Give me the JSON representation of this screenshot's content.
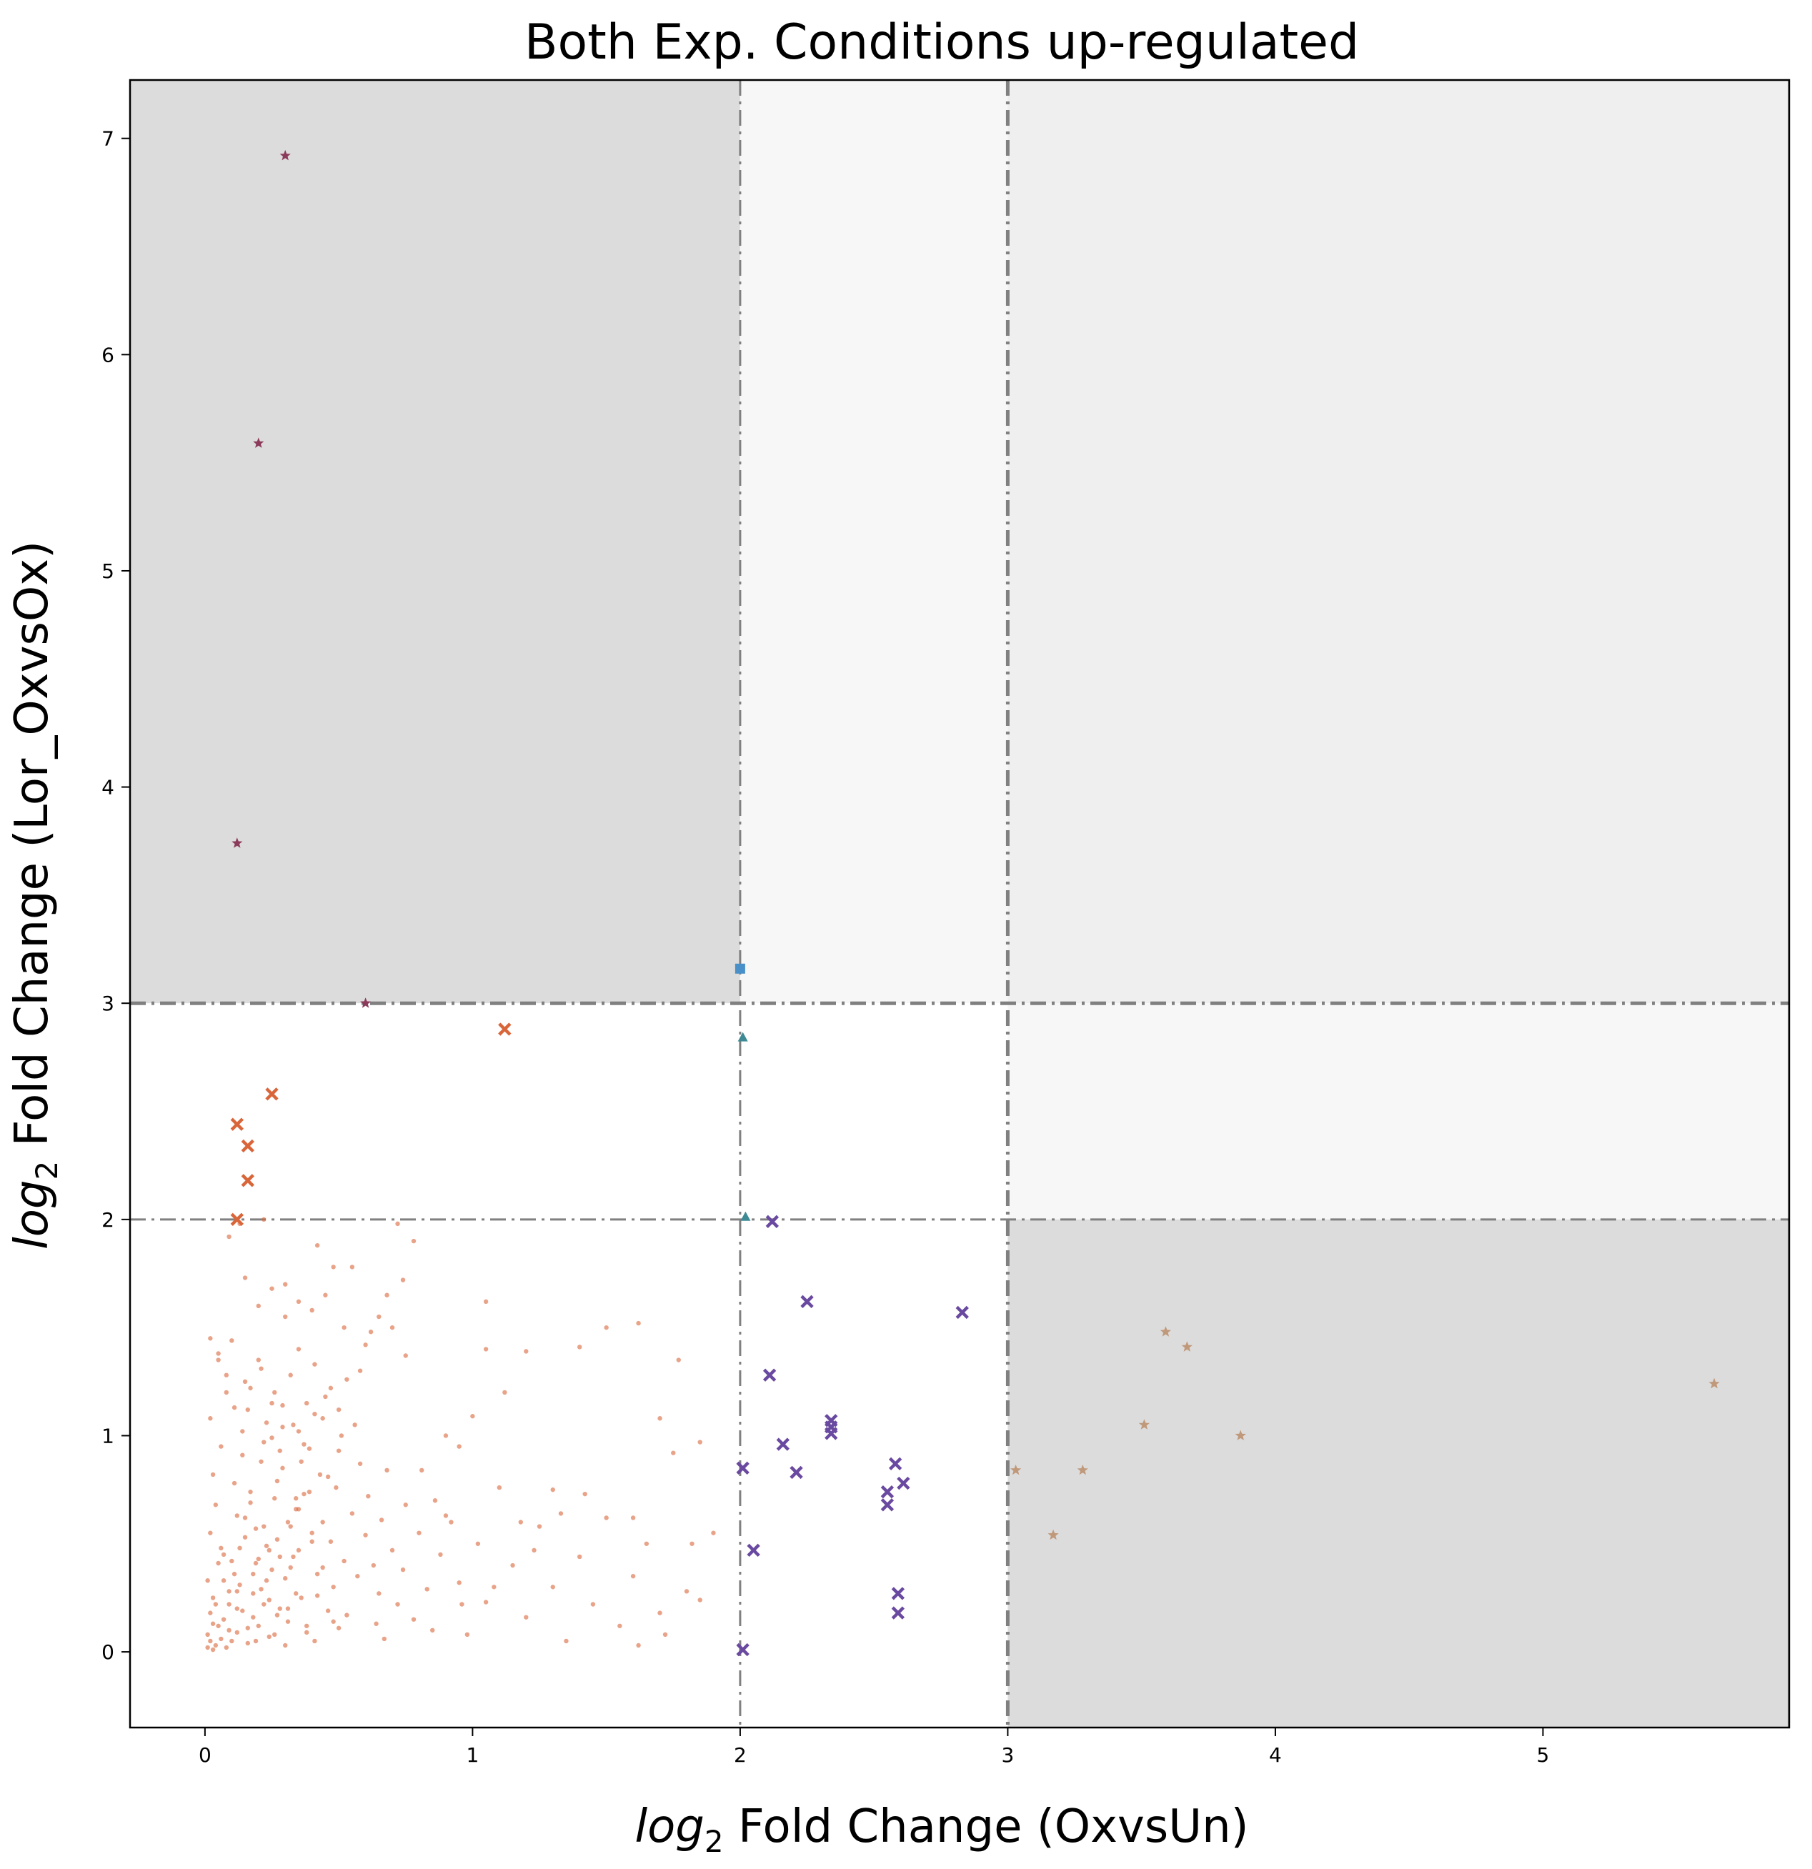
{
  "chart_data": {
    "type": "scatter",
    "title": "Both Exp. Conditions up-regulated",
    "xlabel": {
      "log": "log",
      "sub": "2",
      "text": " Fold Change (OxvsUn)"
    },
    "ylabel": {
      "log": "log",
      "sub": "2",
      "text": " Fold Change (Lor_OxvsOx)"
    },
    "xlim": [
      -0.28,
      5.92
    ],
    "ylim": [
      -0.35,
      7.27
    ],
    "xticks": [
      0,
      1,
      2,
      3,
      4,
      5
    ],
    "yticks": [
      0,
      1,
      2,
      3,
      4,
      5,
      6,
      7
    ],
    "grid": false,
    "thresholds": {
      "x": [
        2,
        3
      ],
      "y": [
        2,
        3
      ]
    },
    "regions": [
      {
        "x": [
          -0.28,
          2
        ],
        "y": [
          3,
          7.27
        ],
        "color": "#dcdcdc"
      },
      {
        "x": [
          2,
          3
        ],
        "y": [
          3,
          7.27
        ],
        "color": "#f7f7f7"
      },
      {
        "x": [
          3,
          5.92
        ],
        "y": [
          3,
          7.27
        ],
        "color": "#efefef"
      },
      {
        "x": [
          3,
          5.92
        ],
        "y": [
          2,
          3
        ],
        "color": "#f7f7f7"
      },
      {
        "x": [
          3,
          5.92
        ],
        "y": [
          -0.35,
          2
        ],
        "color": "#dcdcdc"
      }
    ],
    "series": [
      {
        "marker": "dot",
        "color": "#d9663a",
        "points": [
          [
            0.01,
            0.02
          ],
          [
            0.02,
            0.05
          ],
          [
            0.03,
            0.01
          ],
          [
            0.01,
            0.08
          ],
          [
            0.04,
            0.03
          ],
          [
            0.05,
            0.12
          ],
          [
            0.02,
            0.18
          ],
          [
            0.06,
            0.06
          ],
          [
            0.03,
            0.25
          ],
          [
            0.08,
            0.02
          ],
          [
            0.01,
            0.33
          ],
          [
            0.05,
            0.41
          ],
          [
            0.07,
            0.15
          ],
          [
            0.1,
            0.05
          ],
          [
            0.02,
            0.55
          ],
          [
            0.09,
            0.28
          ],
          [
            0.12,
            0.09
          ],
          [
            0.04,
            0.68
          ],
          [
            0.11,
            0.36
          ],
          [
            0.14,
            0.19
          ],
          [
            0.03,
            0.82
          ],
          [
            0.13,
            0.48
          ],
          [
            0.16,
            0.04
          ],
          [
            0.06,
            0.95
          ],
          [
            0.15,
            0.62
          ],
          [
            0.18,
            0.27
          ],
          [
            0.02,
            1.08
          ],
          [
            0.17,
            0.74
          ],
          [
            0.2,
            0.12
          ],
          [
            0.08,
            1.2
          ],
          [
            0.19,
            0.41
          ],
          [
            0.22,
            0.58
          ],
          [
            0.05,
            1.35
          ],
          [
            0.21,
            0.88
          ],
          [
            0.24,
            0.07
          ],
          [
            0.1,
            1.44
          ],
          [
            0.23,
            0.33
          ],
          [
            0.26,
            0.71
          ],
          [
            0.07,
            0.45
          ],
          [
            0.25,
            0.99
          ],
          [
            0.28,
            0.2
          ],
          [
            0.12,
            0.63
          ],
          [
            0.27,
            0.52
          ],
          [
            0.3,
            0.03
          ],
          [
            0.09,
            0.22
          ],
          [
            0.29,
            0.85
          ],
          [
            0.32,
            0.39
          ],
          [
            0.14,
            0.91
          ],
          [
            0.31,
            0.14
          ],
          [
            0.34,
            0.66
          ],
          [
            0.11,
            0.78
          ],
          [
            0.33,
            1.05
          ],
          [
            0.36,
            0.25
          ],
          [
            0.16,
            1.12
          ],
          [
            0.35,
            0.47
          ],
          [
            0.38,
            0.09
          ],
          [
            0.13,
            0.31
          ],
          [
            0.37,
            0.73
          ],
          [
            0.4,
            0.55
          ],
          [
            0.18,
            0.16
          ],
          [
            0.39,
            0.94
          ],
          [
            0.42,
            0.36
          ],
          [
            0.15,
            1.25
          ],
          [
            0.41,
            0.05
          ],
          [
            0.44,
            0.6
          ],
          [
            0.2,
            0.43
          ],
          [
            0.43,
            0.82
          ],
          [
            0.46,
            0.19
          ],
          [
            0.17,
            0.69
          ],
          [
            0.45,
            1.18
          ],
          [
            0.48,
            0.3
          ],
          [
            0.22,
            0.97
          ],
          [
            0.47,
            0.51
          ],
          [
            0.5,
            0.11
          ],
          [
            0.19,
            0.57
          ],
          [
            0.49,
            0.76
          ],
          [
            0.52,
            0.42
          ],
          [
            0.24,
            0.24
          ],
          [
            0.51,
            1.0
          ],
          [
            0.55,
            0.64
          ],
          [
            0.21,
            1.31
          ],
          [
            0.53,
            0.17
          ],
          [
            0.58,
            0.87
          ],
          [
            0.26,
            0.08
          ],
          [
            0.57,
            0.35
          ],
          [
            0.6,
            0.54
          ],
          [
            0.23,
            0.49
          ],
          [
            0.61,
            0.72
          ],
          [
            0.64,
            0.13
          ],
          [
            0.28,
            0.93
          ],
          [
            0.63,
            0.4
          ],
          [
            0.66,
            0.61
          ],
          [
            0.25,
            1.15
          ],
          [
            0.65,
            0.27
          ],
          [
            0.68,
            0.84
          ],
          [
            0.3,
            0.34
          ],
          [
            0.67,
            0.06
          ],
          [
            0.7,
            0.47
          ],
          [
            0.27,
            0.79
          ],
          [
            0.72,
            0.22
          ],
          [
            0.75,
            0.68
          ],
          [
            0.32,
            0.58
          ],
          [
            0.74,
            0.38
          ],
          [
            0.78,
            0.15
          ],
          [
            0.29,
            1.04
          ],
          [
            0.8,
            0.55
          ],
          [
            0.83,
            0.29
          ],
          [
            0.34,
            0.71
          ],
          [
            0.85,
            0.1
          ],
          [
            0.88,
            0.45
          ],
          [
            0.31,
            0.2
          ],
          [
            0.9,
            0.63
          ],
          [
            0.95,
            0.32
          ],
          [
            0.36,
            0.88
          ],
          [
            0.98,
            0.08
          ],
          [
            1.02,
            0.5
          ],
          [
            0.33,
            0.44
          ],
          [
            1.05,
            0.23
          ],
          [
            1.1,
            0.76
          ],
          [
            0.38,
            0.12
          ],
          [
            1.15,
            0.4
          ],
          [
            1.2,
            0.16
          ],
          [
            0.35,
            0.66
          ],
          [
            1.25,
            0.58
          ],
          [
            1.3,
            0.3
          ],
          [
            0.4,
            0.51
          ],
          [
            1.35,
            0.05
          ],
          [
            1.4,
            0.44
          ],
          [
            0.37,
            0.96
          ],
          [
            1.45,
            0.22
          ],
          [
            1.5,
            0.62
          ],
          [
            0.42,
            0.26
          ],
          [
            1.55,
            0.12
          ],
          [
            1.6,
            0.35
          ],
          [
            0.39,
            0.74
          ],
          [
            1.65,
            0.5
          ],
          [
            1.7,
            0.18
          ],
          [
            0.44,
            0.39
          ],
          [
            1.75,
            0.92
          ],
          [
            1.8,
            0.28
          ],
          [
            0.41,
            1.1
          ],
          [
            1.85,
            0.24
          ],
          [
            1.9,
            0.55
          ],
          [
            0.46,
            0.81
          ],
          [
            0.48,
            0.14
          ],
          [
            0.5,
            0.93
          ],
          [
            0.02,
            1.45
          ],
          [
            0.05,
            1.38
          ],
          [
            0.08,
            1.28
          ],
          [
            0.11,
            1.13
          ],
          [
            0.14,
            1.02
          ],
          [
            0.17,
            1.22
          ],
          [
            0.2,
            1.35
          ],
          [
            0.23,
            1.06
          ],
          [
            0.26,
            1.2
          ],
          [
            0.29,
            1.14
          ],
          [
            0.32,
            1.28
          ],
          [
            0.35,
            1.02
          ],
          [
            0.38,
            1.15
          ],
          [
            0.41,
            1.33
          ],
          [
            0.44,
            1.08
          ],
          [
            0.47,
            1.22
          ],
          [
            0.5,
            1.12
          ],
          [
            0.53,
            1.26
          ],
          [
            0.56,
            1.05
          ],
          [
            0.09,
            1.92
          ],
          [
            0.15,
            1.73
          ],
          [
            0.2,
            1.6
          ],
          [
            0.25,
            1.68
          ],
          [
            0.3,
            1.55
          ],
          [
            0.35,
            1.62
          ],
          [
            0.4,
            1.58
          ],
          [
            0.45,
            1.65
          ],
          [
            0.55,
            1.78
          ],
          [
            0.6,
            1.42
          ],
          [
            0.65,
            1.55
          ],
          [
            0.7,
            1.5
          ],
          [
            0.75,
            1.37
          ],
          [
            0.13,
            1.98
          ],
          [
            0.72,
            1.98
          ],
          [
            0.78,
            1.9
          ],
          [
            0.48,
            1.78
          ],
          [
            0.22,
            2.0
          ],
          [
            0.3,
            1.7
          ],
          [
            1.05,
            1.62
          ],
          [
            1.2,
            1.39
          ],
          [
            1.5,
            1.5
          ],
          [
            1.62,
            1.52
          ],
          [
            1.77,
            1.35
          ],
          [
            1.85,
            0.97
          ],
          [
            1.05,
            1.4
          ],
          [
            1.12,
            1.2
          ],
          [
            1.0,
            1.09
          ],
          [
            0.9,
            1.0
          ],
          [
            0.92,
            0.6
          ],
          [
            0.95,
            0.95
          ],
          [
            0.62,
            1.48
          ],
          [
            0.68,
            1.65
          ],
          [
            0.74,
            1.72
          ],
          [
            0.58,
            1.3
          ],
          [
            0.52,
            1.5
          ],
          [
            0.42,
            1.88
          ],
          [
            0.35,
            1.4
          ],
          [
            1.3,
            0.75
          ],
          [
            1.42,
            0.73
          ],
          [
            1.6,
            0.62
          ],
          [
            1.7,
            1.08
          ],
          [
            1.4,
            1.41
          ],
          [
            1.18,
            0.6
          ],
          [
            1.08,
            0.3
          ],
          [
            0.96,
            0.22
          ],
          [
            0.86,
            0.7
          ],
          [
            0.81,
            0.84
          ],
          [
            1.23,
            0.47
          ],
          [
            1.33,
            0.64
          ],
          [
            1.62,
            0.03
          ],
          [
            1.72,
            0.08
          ],
          [
            1.82,
            0.5
          ],
          [
            0.12,
            0.2
          ],
          [
            0.1,
            0.42
          ],
          [
            0.07,
            0.33
          ],
          [
            0.04,
            0.22
          ],
          [
            0.06,
            0.48
          ],
          [
            0.15,
            0.53
          ],
          [
            0.18,
            0.36
          ],
          [
            0.21,
            0.29
          ],
          [
            0.24,
            0.47
          ],
          [
            0.27,
            0.17
          ],
          [
            0.03,
            0.13
          ],
          [
            0.09,
            0.1
          ],
          [
            0.12,
            0.28
          ],
          [
            0.16,
            0.11
          ],
          [
            0.19,
            0.05
          ],
          [
            0.22,
            0.22
          ],
          [
            0.25,
            0.38
          ],
          [
            0.28,
            0.44
          ],
          [
            0.31,
            0.6
          ],
          [
            0.34,
            0.27
          ]
        ]
      },
      {
        "marker": "x",
        "color": "#d9663a",
        "points": [
          [
            1.12,
            2.88
          ],
          [
            0.25,
            2.58
          ],
          [
            0.12,
            2.44
          ],
          [
            0.16,
            2.34
          ],
          [
            0.16,
            2.18
          ],
          [
            0.12,
            2.0
          ]
        ]
      },
      {
        "marker": "star",
        "color": "#8b3a5a",
        "points": [
          [
            0.3,
            6.92
          ],
          [
            0.2,
            5.59
          ],
          [
            0.12,
            3.74
          ],
          [
            0.6,
            3.0
          ]
        ]
      },
      {
        "marker": "square",
        "color": "#4a90c8",
        "points": [
          [
            2.0,
            3.16
          ]
        ]
      },
      {
        "marker": "triangle",
        "color": "#3d8a95",
        "points": [
          [
            2.01,
            2.84
          ],
          [
            2.02,
            2.01
          ]
        ]
      },
      {
        "marker": "x",
        "color": "#6a4aa0",
        "points": [
          [
            2.12,
            1.99
          ],
          [
            2.25,
            1.62
          ],
          [
            2.83,
            1.57
          ],
          [
            2.11,
            1.28
          ],
          [
            2.34,
            1.07
          ],
          [
            2.34,
            1.04
          ],
          [
            2.34,
            1.01
          ],
          [
            2.16,
            0.96
          ],
          [
            2.58,
            0.87
          ],
          [
            2.01,
            0.85
          ],
          [
            2.21,
            0.83
          ],
          [
            2.61,
            0.78
          ],
          [
            2.55,
            0.74
          ],
          [
            2.55,
            0.68
          ],
          [
            2.05,
            0.47
          ],
          [
            2.59,
            0.27
          ],
          [
            2.59,
            0.18
          ],
          [
            2.01,
            0.01
          ]
        ]
      },
      {
        "marker": "star",
        "color": "#c0987a",
        "points": [
          [
            3.59,
            1.48
          ],
          [
            3.67,
            1.41
          ],
          [
            5.64,
            1.24
          ],
          [
            3.51,
            1.05
          ],
          [
            3.87,
            1.0
          ],
          [
            3.03,
            0.84
          ],
          [
            3.28,
            0.84
          ],
          [
            3.17,
            0.54
          ]
        ]
      }
    ]
  }
}
